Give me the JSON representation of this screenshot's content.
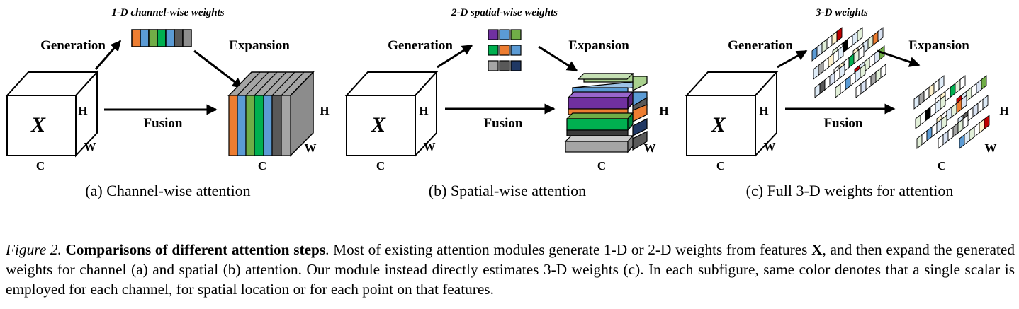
{
  "panels": [
    {
      "id": "a",
      "title": "1-D channel-wise weights",
      "generation": "Generation",
      "expansion": "Expansion",
      "fusion": "Fusion",
      "input_label": "X",
      "dims": {
        "h": "H",
        "w": "W",
        "c": "C"
      },
      "subcaption": "(a) Channel-wise attention"
    },
    {
      "id": "b",
      "title": "2-D spatial-wise weights",
      "generation": "Generation",
      "expansion": "Expansion",
      "fusion": "Fusion",
      "input_label": "X",
      "dims": {
        "h": "H",
        "w": "W",
        "c": "C"
      },
      "subcaption": "(b) Spatial-wise attention"
    },
    {
      "id": "c",
      "title": "3-D weights",
      "generation": "Generation",
      "expansion": "Expansion",
      "fusion": "Fusion",
      "input_label": "X",
      "dims": {
        "h": "H",
        "w": "W",
        "c": "C"
      },
      "subcaption": "(c) Full 3-D weights for attention"
    }
  ],
  "caption": {
    "label": "Figure 2.",
    "bold": "Comparisons of different attention steps",
    "text_before_x": ". Most of existing attention modules generate 1-D or 2-D weights from features ",
    "x": "X",
    "text_after_x": ", and then expand the generated weights for channel (a) and spatial (b) attention. Our module instead directly estimates 3-D weights (c). In each subfigure, same color denotes that a single scalar is employed for each channel, for spatial location or for each point on that features."
  },
  "colors": {
    "orange": "#ED7D31",
    "blue": "#5B9BD5",
    "green": "#70AD47",
    "dark_green": "#00B050",
    "gray": "#A5A5A5",
    "dark_gray": "#595959",
    "purple": "#7030A0",
    "navy": "#203864",
    "light_green": "#A9D18E",
    "yellow": "#FFC000",
    "red": "#C00000",
    "black": "#000000"
  }
}
